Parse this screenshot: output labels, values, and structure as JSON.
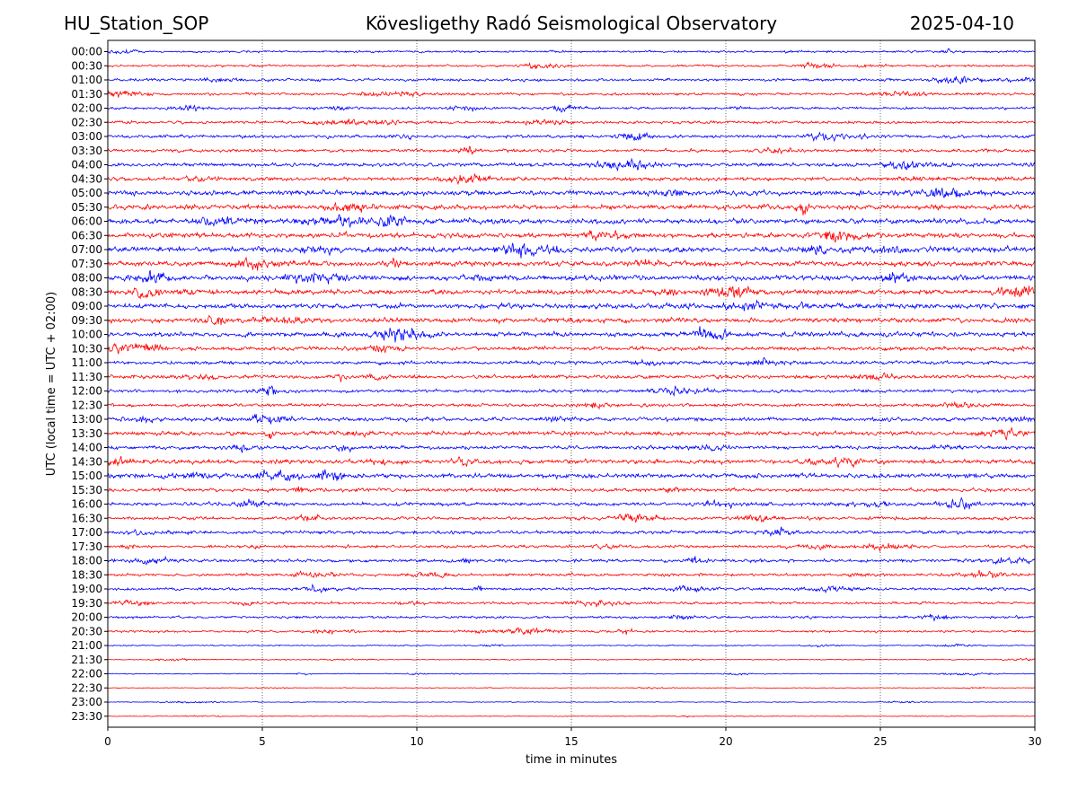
{
  "header": {
    "station": "HU_Station_SOP",
    "observatory": "Köveslig­ethy Radó Seismological Observatory",
    "date": "2025-04-10"
  },
  "chart_data": {
    "type": "line",
    "title": "Köveslig­ethy Radó Seismological Observatory",
    "xlabel": "time in minutes",
    "ylabel": "UTC (local time = UTC + 02:00)",
    "xlim": [
      0,
      30
    ],
    "x_ticks": [
      0,
      5,
      10,
      15,
      20,
      25,
      30
    ],
    "x_grid": "dotted vertical lines at 5, 10, 15, 20, 25",
    "colors": {
      "even_rows": "#0000ff",
      "odd_rows": "#ff0000"
    },
    "rows": [
      {
        "label": "00:00",
        "amp": 0.35
      },
      {
        "label": "00:30",
        "amp": 0.35
      },
      {
        "label": "01:00",
        "amp": 0.45
      },
      {
        "label": "01:30",
        "amp": 0.4
      },
      {
        "label": "02:00",
        "amp": 0.4
      },
      {
        "label": "02:30",
        "amp": 0.45
      },
      {
        "label": "03:00",
        "amp": 0.5
      },
      {
        "label": "03:30",
        "amp": 0.5
      },
      {
        "label": "04:00",
        "amp": 0.6
      },
      {
        "label": "04:30",
        "amp": 0.6
      },
      {
        "label": "05:00",
        "amp": 0.75
      },
      {
        "label": "05:30",
        "amp": 0.75
      },
      {
        "label": "06:00",
        "amp": 0.8
      },
      {
        "label": "06:30",
        "amp": 0.8
      },
      {
        "label": "07:00",
        "amp": 0.85
      },
      {
        "label": "07:30",
        "amp": 0.8
      },
      {
        "label": "08:00",
        "amp": 0.8
      },
      {
        "label": "08:30",
        "amp": 0.75
      },
      {
        "label": "09:00",
        "amp": 0.8
      },
      {
        "label": "09:30",
        "amp": 0.75
      },
      {
        "label": "10:00",
        "amp": 0.75
      },
      {
        "label": "10:30",
        "amp": 0.6
      },
      {
        "label": "11:00",
        "amp": 0.55
      },
      {
        "label": "11:30",
        "amp": 0.55
      },
      {
        "label": "12:00",
        "amp": 0.5
      },
      {
        "label": "12:30",
        "amp": 0.5
      },
      {
        "label": "13:00",
        "amp": 0.6
      },
      {
        "label": "13:30",
        "amp": 0.65
      },
      {
        "label": "14:00",
        "amp": 0.55
      },
      {
        "label": "14:30",
        "amp": 0.7
      },
      {
        "label": "15:00",
        "amp": 0.75
      },
      {
        "label": "15:30",
        "amp": 0.55
      },
      {
        "label": "16:00",
        "amp": 0.55
      },
      {
        "label": "16:30",
        "amp": 0.5
      },
      {
        "label": "17:00",
        "amp": 0.55
      },
      {
        "label": "17:30",
        "amp": 0.45
      },
      {
        "label": "18:00",
        "amp": 0.5
      },
      {
        "label": "18:30",
        "amp": 0.45
      },
      {
        "label": "19:00",
        "amp": 0.45
      },
      {
        "label": "19:30",
        "amp": 0.4
      },
      {
        "label": "20:00",
        "amp": 0.4
      },
      {
        "label": "20:30",
        "amp": 0.35
      },
      {
        "label": "21:00",
        "amp": 0.2
      },
      {
        "label": "21:30",
        "amp": 0.15
      },
      {
        "label": "22:00",
        "amp": 0.15
      },
      {
        "label": "22:30",
        "amp": 0.12
      },
      {
        "label": "23:00",
        "amp": 0.12
      },
      {
        "label": "23:30",
        "amp": 0.12
      }
    ]
  }
}
